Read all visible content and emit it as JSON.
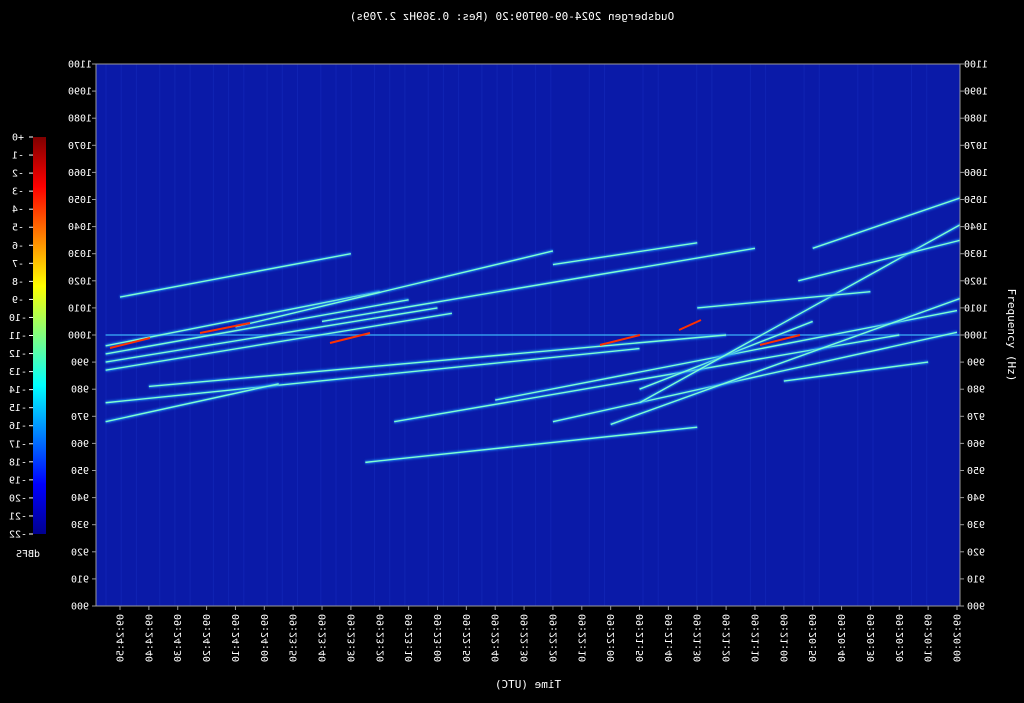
{
  "chart_data": {
    "type": "heatmap",
    "title": "Oudsbergen 2024-09-09T09:20 (Res: 0.369Hz 2.709s)",
    "xlabel": "Time (UTC)",
    "ylabel": "Frequency (Hz)",
    "ylim": [
      900,
      1100
    ],
    "y_ticks": [
      900,
      910,
      920,
      930,
      940,
      950,
      960,
      970,
      980,
      990,
      1000,
      1010,
      1020,
      1030,
      1040,
      1050,
      1060,
      1070,
      1080,
      1090,
      1100
    ],
    "x_ticks": [
      "09:24:50",
      "09:24:40",
      "09:24:30",
      "09:24:20",
      "09:24:10",
      "09:24:00",
      "09:23:50",
      "09:23:40",
      "09:23:30",
      "09:23:20",
      "09:23:10",
      "09:23:00",
      "09:22:50",
      "09:22:40",
      "09:22:30",
      "09:22:20",
      "09:22:10",
      "09:22:00",
      "09:21:50",
      "09:21:40",
      "09:21:30",
      "09:21:20",
      "09:21:10",
      "09:21:00",
      "09:20:50",
      "09:20:40",
      "09:20:30",
      "09:20:20",
      "09:20:10",
      "09:20:00"
    ],
    "colorbar": {
      "label": "dBFS",
      "range": [
        -22,
        0
      ],
      "ticks": [
        "+0",
        "-1",
        "-2",
        "-3",
        "-4",
        "-5",
        "-6",
        "-7",
        "-8",
        "-9",
        "-10",
        "-11",
        "-12",
        "-13",
        "-14",
        "-15",
        "-16",
        "-17",
        "-18",
        "-19",
        "-20",
        "-21",
        "-22"
      ],
      "colors": [
        "#7f0000",
        "#ff0000",
        "#ff8000",
        "#ffff00",
        "#80ff80",
        "#00ffff",
        "#0080ff",
        "#0000ff",
        "#00008f"
      ]
    },
    "background_color": "#0a1aa8",
    "series": [
      {
        "x": [
          "09:24:55",
          "09:23:20"
        ],
        "y": [
          996,
          1016
        ]
      },
      {
        "x": [
          "09:24:55",
          "09:23:10"
        ],
        "y": [
          993,
          1013
        ]
      },
      {
        "x": [
          "09:24:55",
          "09:23:00"
        ],
        "y": [
          990,
          1010
        ]
      },
      {
        "x": [
          "09:24:50",
          "09:23:30"
        ],
        "y": [
          1014,
          1030
        ]
      },
      {
        "x": [
          "09:24:55",
          "09:22:55"
        ],
        "y": [
          987,
          1008
        ]
      },
      {
        "x": [
          "09:24:40",
          "09:21:20"
        ],
        "y": [
          981,
          1000
        ]
      },
      {
        "x": [
          "09:24:55",
          "09:21:50"
        ],
        "y": [
          975,
          995
        ]
      },
      {
        "x": [
          "09:24:10",
          "09:22:20"
        ],
        "y": [
          1003,
          1031
        ]
      },
      {
        "x": [
          "09:23:40",
          "09:21:10"
        ],
        "y": [
          1005,
          1032
        ]
      },
      {
        "x": [
          "09:24:55",
          "09:23:55"
        ],
        "y": [
          968,
          982
        ]
      },
      {
        "x": [
          "09:22:20",
          "09:21:30"
        ],
        "y": [
          1026,
          1034
        ]
      },
      {
        "x": [
          "09:23:15",
          "09:20:20"
        ],
        "y": [
          968,
          1000
        ]
      },
      {
        "x": [
          "09:22:40",
          "09:20:00"
        ],
        "y": [
          976,
          1009
        ]
      },
      {
        "x": [
          "09:21:50",
          "09:20:50"
        ],
        "y": [
          980,
          1005
        ]
      },
      {
        "x": [
          "09:22:20",
          "09:20:00"
        ],
        "y": [
          968,
          1001
        ]
      },
      {
        "x": [
          "09:21:50",
          "09:19:55"
        ],
        "y": [
          975,
          1043
        ]
      },
      {
        "x": [
          "09:22:00",
          "09:19:55"
        ],
        "y": [
          967,
          1015
        ]
      },
      {
        "x": [
          "09:23:25",
          "09:21:30"
        ],
        "y": [
          953,
          966
        ]
      },
      {
        "x": [
          "09:21:00",
          "09:20:10"
        ],
        "y": [
          983,
          990
        ]
      },
      {
        "x": [
          "09:20:50",
          "09:19:55"
        ],
        "y": [
          1032,
          1052
        ]
      },
      {
        "x": [
          "09:20:55",
          "09:19:55"
        ],
        "y": [
          1020,
          1036
        ]
      },
      {
        "x": [
          "09:21:30",
          "09:20:30"
        ],
        "y": [
          1010,
          1016
        ]
      }
    ],
    "constant_lines": [
      {
        "y": 1000,
        "x": [
          "09:24:55",
          "09:19:55"
        ]
      }
    ]
  }
}
